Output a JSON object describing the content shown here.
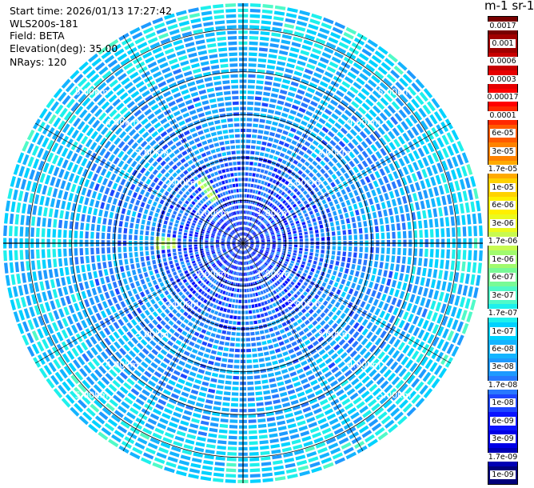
{
  "header": {
    "start_time": "Start time: 2026/01/13 17:27:42",
    "instrument": "WLS200s-181",
    "field": "Field: BETA",
    "elevation": "Elevation(deg): 35.00",
    "nrays": "NRays: 120"
  },
  "colorbar": {
    "title": "m-1 sr-1",
    "labels": [
      "1e-09",
      "1.7e-09",
      "3e-09",
      "6e-09",
      "1e-08",
      "1.7e-08",
      "3e-08",
      "6e-08",
      "1e-07",
      "1.7e-07",
      "3e-07",
      "6e-07",
      "1e-06",
      "1.7e-06",
      "3e-06",
      "6e-06",
      "1e-05",
      "1.7e-05",
      "3e-05",
      "6e-05",
      "0.0001",
      "0.00017",
      "0.0003",
      "0.0006",
      "0.001",
      "0.0017"
    ],
    "colors": [
      "#00007a",
      "#0000b4",
      "#0000e6",
      "#0a14ff",
      "#1e46ff",
      "#2878ff",
      "#1e9aff",
      "#14b4ff",
      "#00d2ff",
      "#1ef0ec",
      "#50fac8",
      "#78fa96",
      "#a0fa6e",
      "#c8fa50",
      "#ebfa1e",
      "#fff000",
      "#ffd200",
      "#ffaa00",
      "#ff8200",
      "#ff5a00",
      "#ff2800",
      "#ff0000",
      "#e60000",
      "#c80000",
      "#a00000",
      "#780000"
    ]
  },
  "chart_data": {
    "type": "heatmap",
    "projection": "polar (PPI scan)",
    "field": "BETA",
    "elevation_deg": 35.0,
    "n_rays": 120,
    "range_rings_km": [
      1.0,
      2.0,
      3.0,
      4.0,
      5.0
    ],
    "ring_labels": [
      "1.00km",
      "2.00km",
      "3.00km",
      "4.00km",
      "5.00km"
    ],
    "range_max_km": 5.6,
    "colorscale": "log",
    "value_range": [
      1e-09,
      0.0017
    ],
    "dominant_values": {
      "near_range": 1e-08,
      "mid_range": 3e-08,
      "far_range": 6e-08
    },
    "hotspots": [
      {
        "azimuth_deg": 270,
        "range_km": 1.8,
        "value": 1.7e-06
      },
      {
        "azimuth_deg": 327,
        "range_km": 1.45,
        "value": 1.7e-06
      }
    ]
  }
}
